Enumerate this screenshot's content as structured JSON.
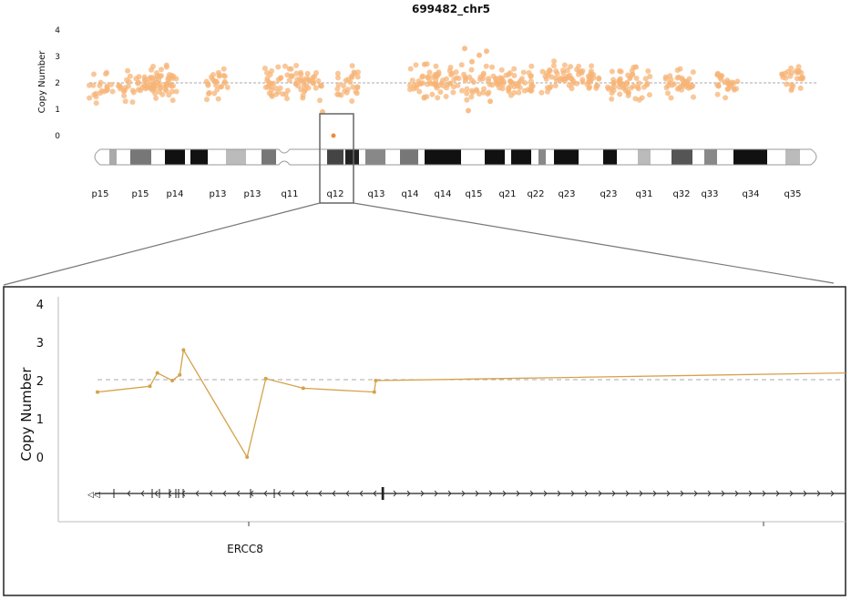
{
  "chart_data": [
    {
      "type": "scatter",
      "title": "699482_chr5",
      "ylabel": "Copy Number",
      "ylim": [
        0,
        4
      ],
      "yticks": [
        0,
        1,
        2,
        3,
        4
      ],
      "reference_line": 2,
      "point_color": "#f7b477",
      "chromosome_bands": [
        "p15",
        "p15",
        "p14",
        "p13",
        "p13",
        "q11",
        "q12",
        "q13",
        "q14",
        "q14",
        "q15",
        "q21",
        "q22",
        "q23",
        "q23",
        "q31",
        "q32",
        "q33",
        "q34",
        "q35"
      ],
      "highlighted_band": "q12",
      "clusters": [
        {
          "from": 0.0,
          "to": 0.12,
          "mean": 1.95
        },
        {
          "from": 0.16,
          "to": 0.19,
          "mean": 1.95
        },
        {
          "from": 0.24,
          "to": 0.32,
          "mean": 2.0
        },
        {
          "from": 0.34,
          "to": 0.37,
          "mean": 2.0
        },
        {
          "from": 0.44,
          "to": 0.61,
          "mean": 2.0
        },
        {
          "from": 0.62,
          "to": 0.7,
          "mean": 2.15
        },
        {
          "from": 0.71,
          "to": 0.77,
          "mean": 1.95
        },
        {
          "from": 0.79,
          "to": 0.83,
          "mean": 2.0
        },
        {
          "from": 0.86,
          "to": 0.89,
          "mean": 2.0
        },
        {
          "from": 0.95,
          "to": 0.98,
          "mean": 2.05
        }
      ],
      "outliers": [
        {
          "x": 0.515,
          "y": 3.3
        },
        {
          "x": 0.545,
          "y": 3.2
        },
        {
          "x": 0.535,
          "y": 3.05
        },
        {
          "x": 0.525,
          "y": 2.8
        },
        {
          "x": 0.46,
          "y": 2.7
        },
        {
          "x": 0.75,
          "y": 2.6
        },
        {
          "x": 0.32,
          "y": 0.9
        },
        {
          "x": 0.52,
          "y": 0.95
        },
        {
          "x": 0.55,
          "y": 1.3
        }
      ]
    },
    {
      "type": "line",
      "ylabel": "Copy Number",
      "ylim": [
        0,
        4
      ],
      "yticks": [
        0,
        1,
        2,
        3,
        4
      ],
      "reference_line": 2,
      "line_color": "#d4a24a",
      "gene_label": "ERCC8",
      "x": [
        0.0,
        0.07,
        0.08,
        0.1,
        0.11,
        0.115,
        0.2,
        0.225,
        0.275,
        0.37,
        0.372,
        1.0
      ],
      "y": [
        1.7,
        1.85,
        2.2,
        2.0,
        2.15,
        2.8,
        0.0,
        2.05,
        1.8,
        1.7,
        2.0,
        2.2
      ]
    }
  ]
}
